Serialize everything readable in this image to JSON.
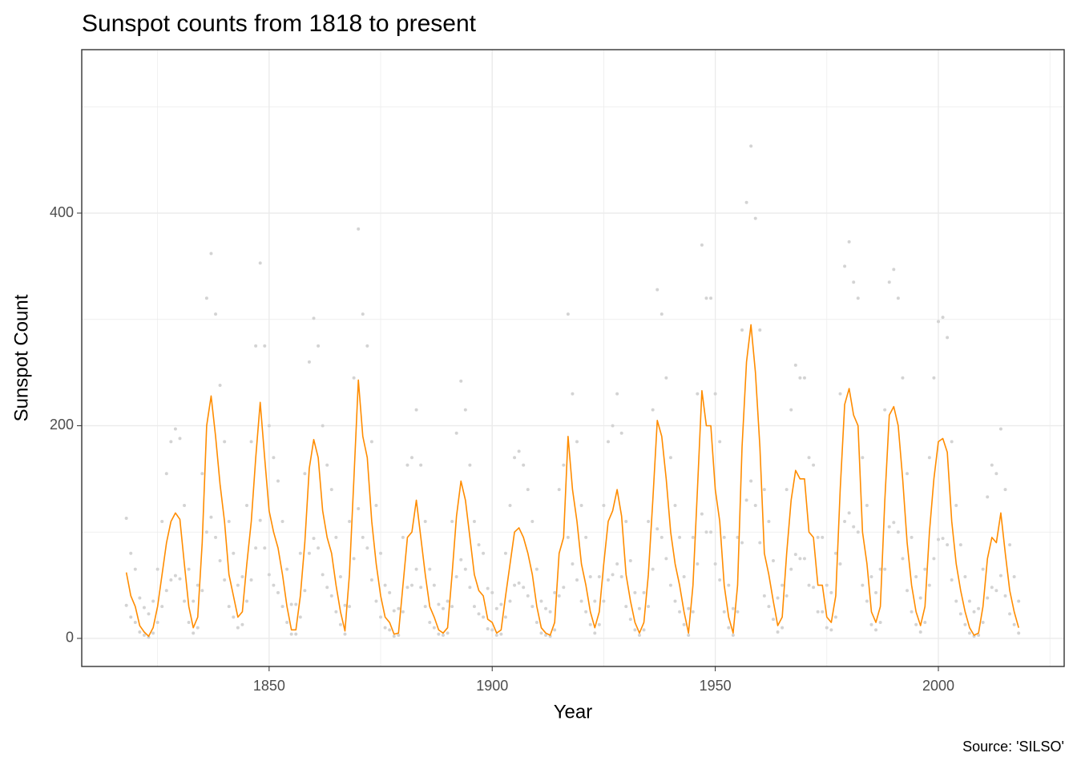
{
  "chart_data": {
    "type": "scatter",
    "title": "Sunspot counts from 1818 to present",
    "x_label": "Year",
    "y_label": "Sunspot Count",
    "caption": "Source: 'SILSO'",
    "xlim": [
      1808,
      2028.2
    ],
    "ylim": [
      -26.4,
      553.7
    ],
    "xticks": [
      1850,
      1900,
      1950,
      2000
    ],
    "yticks": [
      0,
      200,
      400
    ],
    "grid": true,
    "x": [
      1818,
      1819,
      1820,
      1821,
      1822,
      1823,
      1824,
      1825,
      1826,
      1827,
      1828,
      1829,
      1830,
      1831,
      1832,
      1833,
      1834,
      1835,
      1836,
      1837,
      1838,
      1839,
      1840,
      1841,
      1842,
      1843,
      1844,
      1845,
      1846,
      1847,
      1848,
      1849,
      1850,
      1851,
      1852,
      1853,
      1854,
      1855,
      1856,
      1857,
      1858,
      1859,
      1860,
      1861,
      1862,
      1863,
      1864,
      1865,
      1866,
      1867,
      1868,
      1869,
      1870,
      1871,
      1872,
      1873,
      1874,
      1875,
      1876,
      1877,
      1878,
      1879,
      1880,
      1881,
      1882,
      1883,
      1884,
      1885,
      1886,
      1887,
      1888,
      1889,
      1890,
      1891,
      1892,
      1893,
      1894,
      1895,
      1896,
      1897,
      1898,
      1899,
      1900,
      1901,
      1902,
      1903,
      1904,
      1905,
      1906,
      1907,
      1908,
      1909,
      1910,
      1911,
      1912,
      1913,
      1914,
      1915,
      1916,
      1917,
      1918,
      1919,
      1920,
      1921,
      1922,
      1923,
      1924,
      1925,
      1926,
      1927,
      1928,
      1929,
      1930,
      1931,
      1932,
      1933,
      1934,
      1935,
      1936,
      1937,
      1938,
      1939,
      1940,
      1941,
      1942,
      1943,
      1944,
      1945,
      1946,
      1947,
      1948,
      1949,
      1950,
      1951,
      1952,
      1953,
      1954,
      1955,
      1956,
      1957,
      1958,
      1959,
      1960,
      1961,
      1962,
      1963,
      1964,
      1965,
      1966,
      1967,
      1968,
      1969,
      1970,
      1971,
      1972,
      1973,
      1974,
      1975,
      1976,
      1977,
      1978,
      1979,
      1980,
      1981,
      1982,
      1983,
      1984,
      1985,
      1986,
      1987,
      1988,
      1989,
      1990,
      1991,
      1992,
      1993,
      1994,
      1995,
      1996,
      1997,
      1998,
      1999,
      2000,
      2001,
      2002,
      2003,
      2004,
      2005,
      2006,
      2007,
      2008,
      2009,
      2010,
      2011,
      2012,
      2013,
      2014,
      2015,
      2016,
      2017,
      2018
    ],
    "series": [
      {
        "type": "scatter",
        "color": "#d3d3d3",
        "values": [
          113,
          80,
          65,
          38,
          29,
          23,
          35,
          65,
          110,
          155,
          185,
          197,
          188,
          125,
          65,
          35,
          50,
          155,
          320,
          362,
          305,
          238,
          185,
          110,
          80,
          50,
          58,
          125,
          185,
          275,
          353,
          275,
          200,
          170,
          148,
          110,
          65,
          32,
          32,
          80,
          155,
          260,
          301,
          275,
          200,
          163,
          140,
          95,
          58,
          31,
          110,
          245,
          385,
          305,
          275,
          185,
          125,
          80,
          50,
          43,
          26,
          28,
          95,
          163,
          170,
          215,
          163,
          110,
          65,
          50,
          32,
          28,
          35,
          110,
          193,
          242,
          215,
          163,
          110,
          88,
          80,
          47,
          43,
          28,
          32,
          80,
          125,
          170,
          176,
          163,
          140,
          110,
          65,
          35,
          28,
          25,
          43,
          140,
          163,
          305,
          230,
          185,
          125,
          95,
          58,
          35,
          58,
          125,
          185,
          200,
          230,
          193,
          110,
          73,
          43,
          28,
          43,
          110,
          215,
          328,
          305,
          245,
          170,
          125,
          95,
          58,
          28,
          95,
          230,
          370,
          320,
          320,
          230,
          185,
          95,
          50,
          28,
          95,
          290,
          410,
          463,
          395,
          290,
          140,
          110,
          73,
          38,
          50,
          140,
          215,
          257,
          245,
          245,
          170,
          163,
          95,
          95,
          50,
          43,
          80,
          230,
          350,
          373,
          335,
          320,
          170,
          125,
          58,
          43,
          65,
          215,
          335,
          347,
          320,
          245,
          155,
          95,
          58,
          38,
          65,
          170,
          245,
          298,
          302,
          283,
          185,
          125,
          88,
          58,
          35,
          25,
          28,
          65,
          133,
          163,
          155,
          197,
          140,
          88,
          58,
          35
        ]
      },
      {
        "type": "scatter",
        "color": "#d3d3d3",
        "values": [
          31,
          20,
          15,
          6,
          3,
          1,
          5,
          15,
          30,
          45,
          55,
          59,
          56,
          35,
          15,
          5,
          10,
          45,
          100,
          114,
          95,
          73,
          55,
          30,
          20,
          10,
          13,
          35,
          55,
          85,
          111,
          85,
          60,
          50,
          43,
          30,
          15,
          4,
          4,
          20,
          45,
          80,
          94,
          85,
          60,
          48,
          40,
          25,
          13,
          4,
          30,
          75,
          122,
          95,
          85,
          55,
          35,
          20,
          10,
          8,
          2,
          3,
          25,
          48,
          50,
          65,
          48,
          30,
          15,
          10,
          4,
          3,
          5,
          30,
          58,
          74,
          65,
          48,
          30,
          23,
          20,
          9,
          8,
          3,
          4,
          20,
          35,
          50,
          52,
          48,
          40,
          30,
          15,
          5,
          3,
          2,
          8,
          40,
          48,
          95,
          70,
          55,
          35,
          25,
          13,
          5,
          13,
          35,
          55,
          60,
          70,
          58,
          30,
          18,
          8,
          3,
          8,
          30,
          65,
          103,
          95,
          75,
          50,
          35,
          25,
          13,
          3,
          25,
          70,
          117,
          100,
          100,
          70,
          55,
          25,
          10,
          3,
          25,
          90,
          130,
          148,
          125,
          90,
          40,
          30,
          18,
          6,
          10,
          40,
          65,
          79,
          75,
          75,
          50,
          48,
          25,
          25,
          10,
          8,
          20,
          70,
          110,
          118,
          105,
          100,
          50,
          35,
          13,
          8,
          15,
          65,
          105,
          109,
          100,
          75,
          45,
          25,
          13,
          6,
          15,
          50,
          75,
          93,
          94,
          88,
          55,
          35,
          23,
          13,
          5,
          2,
          3,
          15,
          38,
          48,
          45,
          59,
          40,
          23,
          13,
          5
        ]
      },
      {
        "type": "line",
        "color": "#ff8c00",
        "values": [
          62,
          40,
          30,
          12,
          6,
          2,
          10,
          30,
          60,
          90,
          110,
          118,
          112,
          70,
          30,
          10,
          20,
          90,
          200,
          228,
          190,
          145,
          110,
          60,
          40,
          20,
          25,
          70,
          110,
          170,
          222,
          170,
          120,
          100,
          85,
          60,
          30,
          8,
          8,
          40,
          90,
          160,
          187,
          170,
          120,
          95,
          80,
          50,
          25,
          7,
          60,
          150,
          243,
          190,
          170,
          110,
          70,
          40,
          20,
          15,
          4,
          5,
          50,
          95,
          100,
          130,
          95,
          60,
          30,
          20,
          8,
          5,
          10,
          60,
          115,
          148,
          130,
          95,
          60,
          45,
          40,
          18,
          15,
          5,
          8,
          40,
          70,
          100,
          104,
          95,
          80,
          60,
          30,
          10,
          5,
          3,
          15,
          80,
          95,
          190,
          140,
          110,
          70,
          50,
          25,
          10,
          25,
          70,
          110,
          120,
          140,
          115,
          60,
          35,
          15,
          5,
          15,
          60,
          130,
          205,
          190,
          150,
          100,
          70,
          50,
          25,
          5,
          50,
          140,
          233,
          200,
          200,
          140,
          110,
          50,
          20,
          5,
          50,
          180,
          260,
          295,
          250,
          180,
          80,
          60,
          35,
          12,
          20,
          80,
          130,
          158,
          150,
          150,
          100,
          95,
          50,
          50,
          20,
          15,
          40,
          140,
          220,
          235,
          210,
          200,
          100,
          70,
          25,
          15,
          30,
          130,
          210,
          218,
          200,
          150,
          90,
          50,
          25,
          12,
          30,
          100,
          150,
          185,
          188,
          175,
          110,
          70,
          45,
          25,
          10,
          3,
          5,
          30,
          75,
          95,
          90,
          118,
          80,
          45,
          25,
          10
        ]
      }
    ]
  }
}
